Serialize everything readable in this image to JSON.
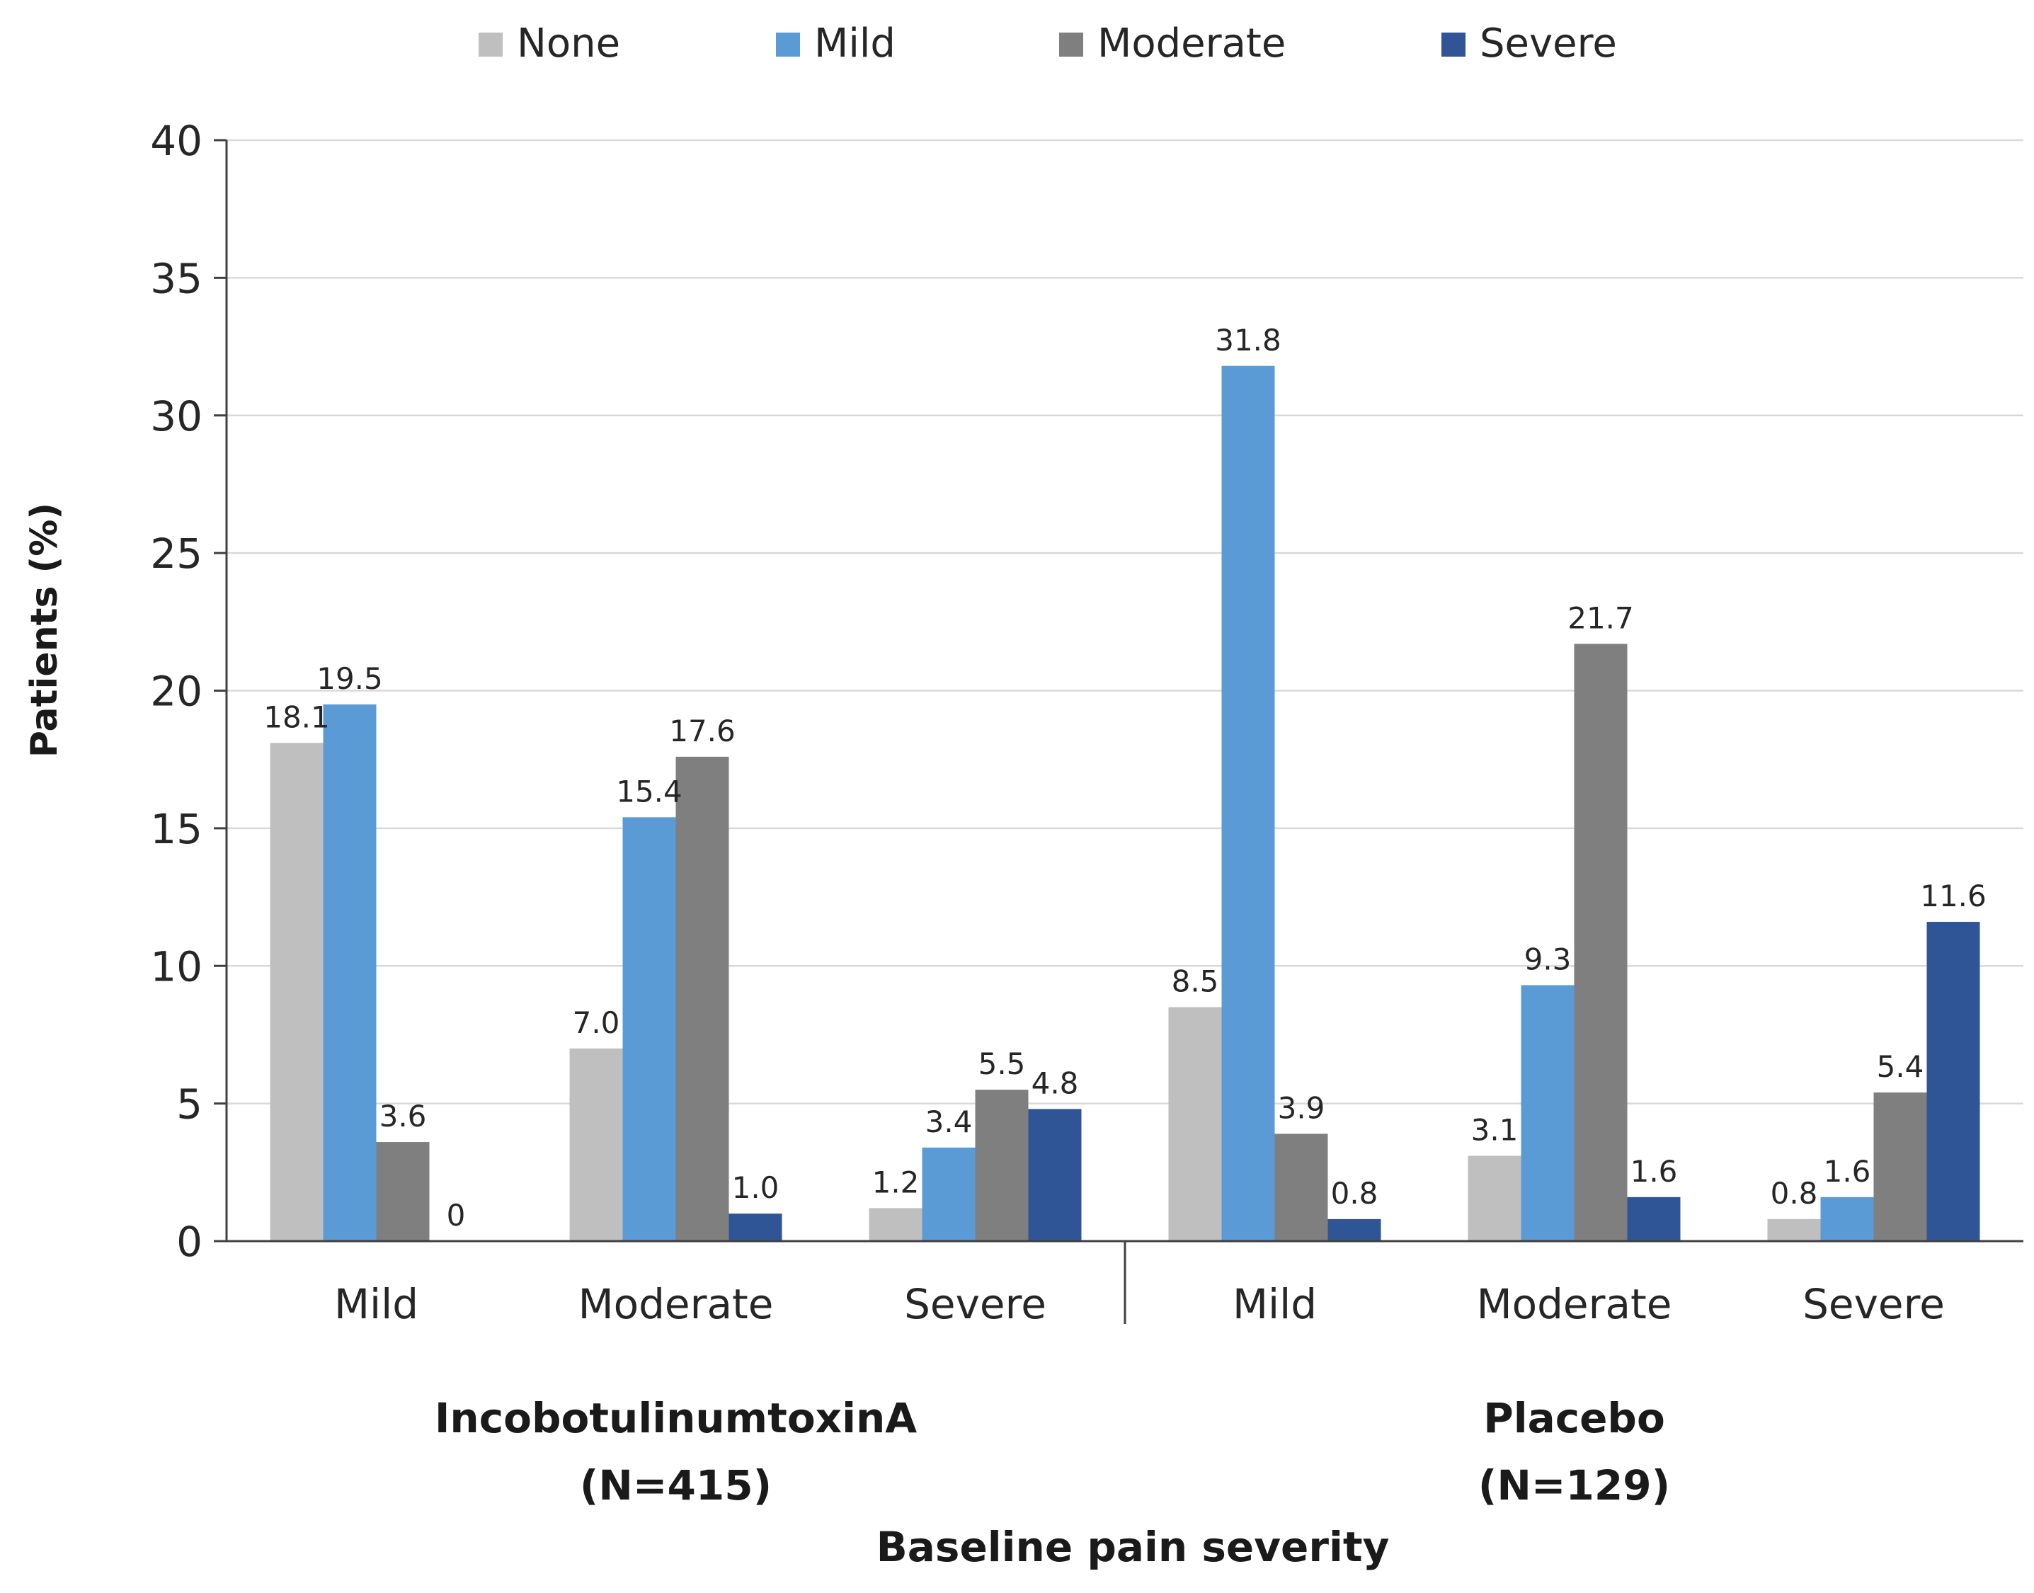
{
  "chart_data": {
    "type": "bar",
    "ylabel": "Patients (%)",
    "xlabel": "Baseline pain severity",
    "ylim": [
      0,
      40
    ],
    "yticks": [
      0,
      5,
      10,
      15,
      20,
      25,
      30,
      35,
      40
    ],
    "grid": true,
    "legend_position": "top",
    "groups": [
      {
        "label_line1": "IncobotulinumtoxinA",
        "label_line2": "(N=415)"
      },
      {
        "label_line1": "Placebo",
        "label_line2": "(N=129)"
      }
    ],
    "categories": [
      "Mild",
      "Moderate",
      "Severe",
      "Mild",
      "Moderate",
      "Severe"
    ],
    "series": [
      {
        "name": "None",
        "color": "#bfbfbf",
        "values": [
          18.1,
          7.0,
          1.2,
          8.5,
          3.1,
          0.8
        ],
        "labels": [
          "18.1",
          "7.0",
          "1.2",
          "8.5",
          "3.1",
          "0.8"
        ]
      },
      {
        "name": "Mild",
        "color": "#5b9bd5",
        "values": [
          19.5,
          15.4,
          3.4,
          31.8,
          9.3,
          1.6
        ],
        "labels": [
          "19.5",
          "15.4",
          "3.4",
          "31.8",
          "9.3",
          "1.6"
        ]
      },
      {
        "name": "Moderate",
        "color": "#7f7f7f",
        "values": [
          3.6,
          17.6,
          5.5,
          3.9,
          21.7,
          5.4
        ],
        "labels": [
          "3.6",
          "17.6",
          "5.5",
          "3.9",
          "21.7",
          "5.4"
        ]
      },
      {
        "name": "Severe",
        "color": "#2f5597",
        "values": [
          0,
          1.0,
          4.8,
          0.8,
          1.6,
          11.6
        ],
        "labels": [
          "0",
          "1.0",
          "4.8",
          "0.8",
          "1.6",
          "11.6"
        ]
      }
    ]
  }
}
